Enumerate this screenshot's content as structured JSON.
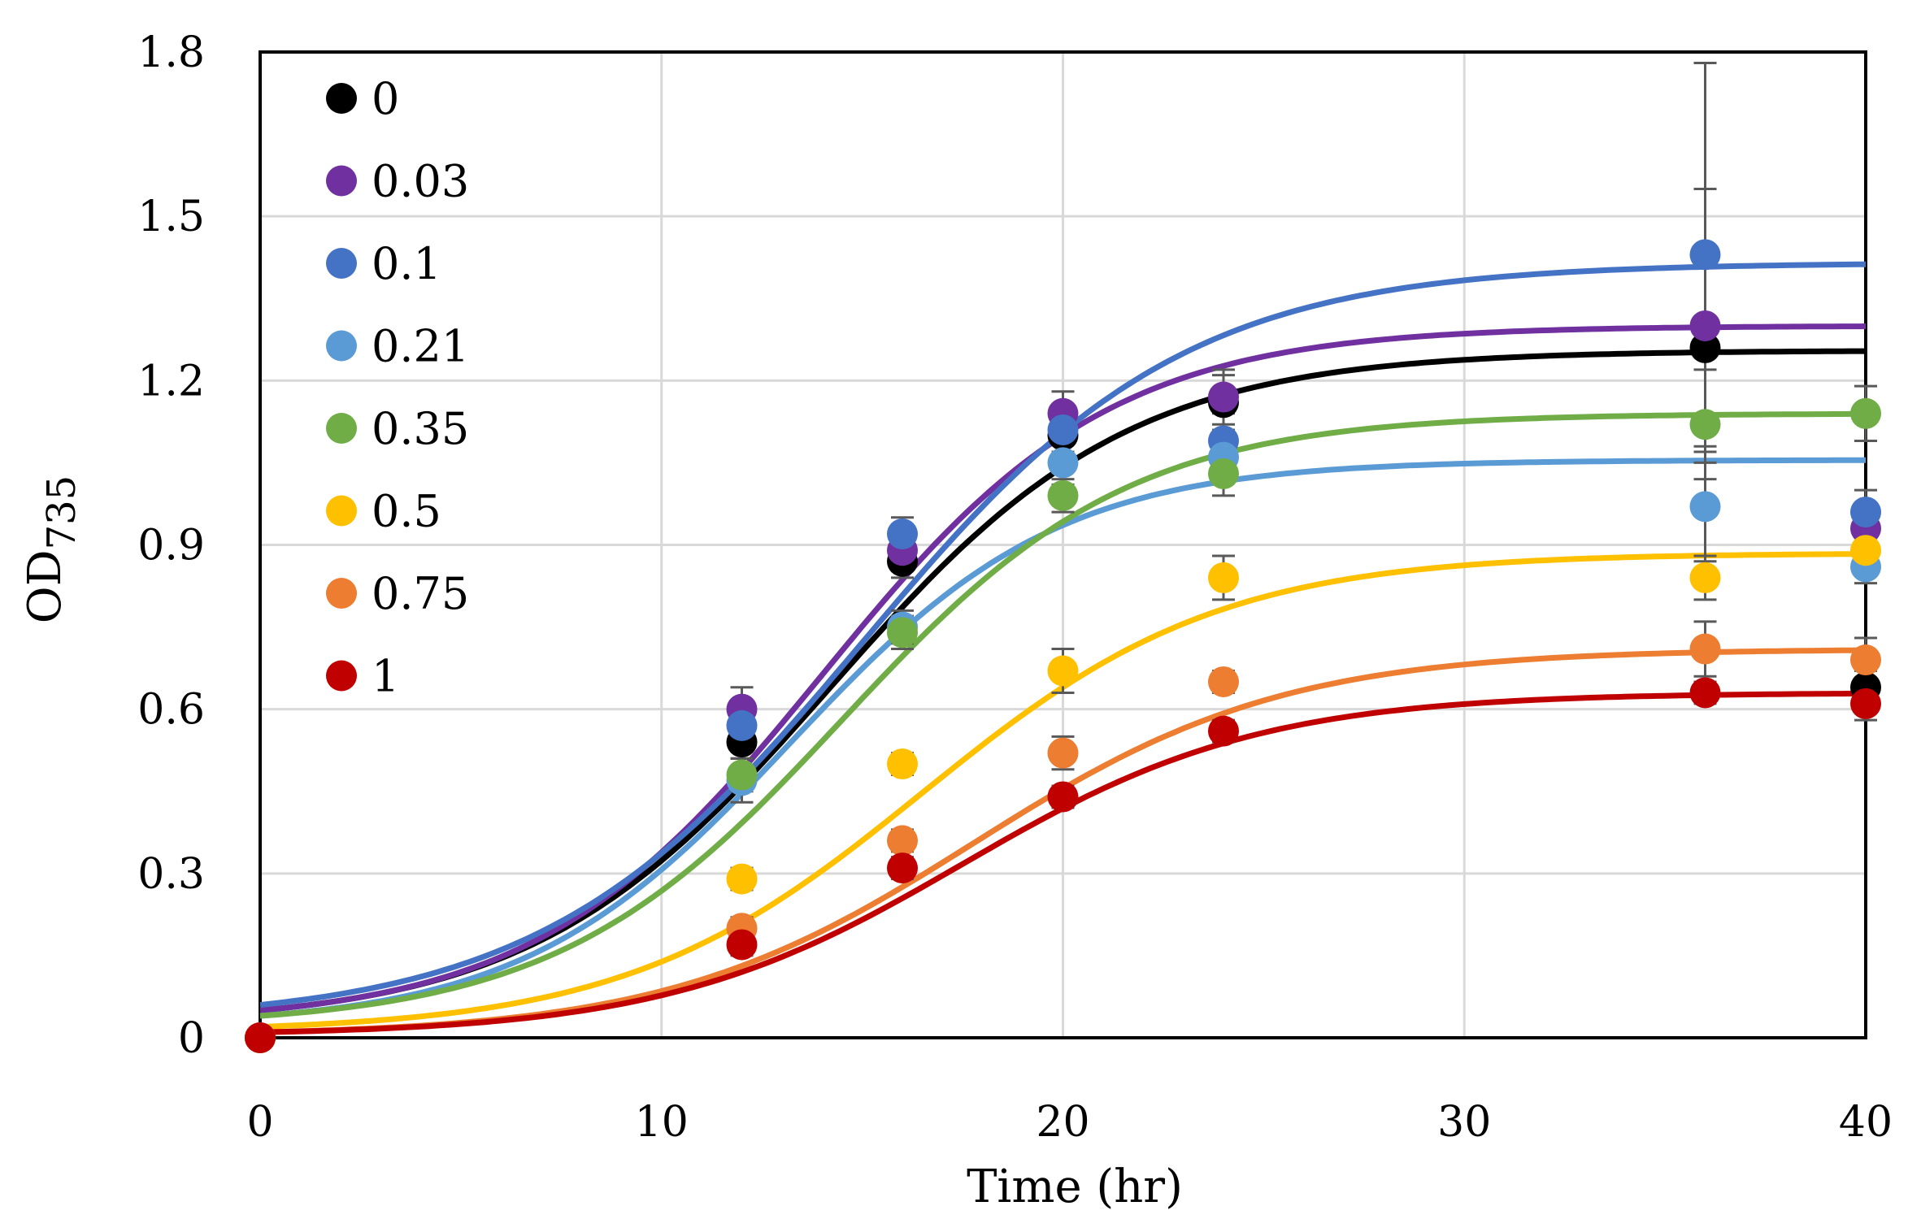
{
  "chart_data": {
    "type": "scatter",
    "title": "",
    "xlabel": "Time (hr)",
    "ylabel_main": "OD",
    "ylabel_sub": "735",
    "xlim": [
      0,
      40
    ],
    "ylim": [
      0,
      1.8
    ],
    "x_ticks": [
      0,
      10,
      20,
      30,
      40
    ],
    "x_tick_labels": [
      "0",
      "10",
      "20",
      "30",
      "40"
    ],
    "y_ticks": [
      0,
      0.3,
      0.6,
      0.9,
      1.2,
      1.5,
      1.8
    ],
    "y_tick_labels": [
      "0",
      "0.3",
      "0.6",
      "0.9",
      "1.2",
      "1.5",
      "1.8"
    ],
    "grid": true,
    "legend_position": "top-left",
    "x": [
      0,
      12,
      16,
      20,
      24,
      36,
      40
    ],
    "series": [
      {
        "name": "0",
        "color": "#000000",
        "values": [
          0.0,
          0.54,
          0.87,
          1.1,
          1.16,
          1.26,
          0.64
        ],
        "errors": [
          0,
          0.03,
          0.03,
          0.04,
          0.05,
          0.29,
          0.03
        ],
        "fit": {
          "max": 1.255,
          "k": 0.27,
          "t0": 14.2,
          "y0": 0.05
        }
      },
      {
        "name": "0.03",
        "color": "#7030a0",
        "values": [
          0.0,
          0.6,
          0.89,
          1.14,
          1.17,
          1.3,
          0.93
        ],
        "errors": [
          0,
          0.04,
          0.03,
          0.04,
          0.05,
          0.25,
          0.03
        ],
        "fit": {
          "max": 1.3,
          "k": 0.28,
          "t0": 14.0,
          "y0": 0.05
        }
      },
      {
        "name": "0.1",
        "color": "#4472c4",
        "values": [
          0.0,
          0.57,
          0.92,
          1.11,
          1.09,
          1.43,
          0.96
        ],
        "errors": [
          0,
          0.03,
          0.03,
          0.04,
          0.05,
          0.35,
          0.04
        ],
        "fit": {
          "max": 1.415,
          "k": 0.25,
          "t0": 15.0,
          "y0": 0.06
        }
      },
      {
        "name": "0.21",
        "color": "#5b9bd5",
        "values": [
          0.0,
          0.47,
          0.75,
          1.05,
          1.06,
          0.97,
          0.86
        ],
        "errors": [
          0,
          0.04,
          0.03,
          0.04,
          0.04,
          0.1,
          0.03
        ],
        "fit": {
          "max": 1.055,
          "k": 0.3,
          "t0": 13.2,
          "y0": 0.04
        }
      },
      {
        "name": "0.35",
        "color": "#70ad47",
        "values": [
          0.0,
          0.48,
          0.74,
          0.99,
          1.03,
          1.12,
          1.14
        ],
        "errors": [
          0,
          0.03,
          0.03,
          0.03,
          0.04,
          0.1,
          0.05
        ],
        "fit": {
          "max": 1.14,
          "k": 0.28,
          "t0": 14.5,
          "y0": 0.04
        }
      },
      {
        "name": "0.5",
        "color": "#ffc000",
        "values": [
          0.0,
          0.29,
          0.5,
          0.67,
          0.84,
          0.84,
          0.89
        ],
        "errors": [
          0,
          0.02,
          0.02,
          0.04,
          0.04,
          0.04,
          0.03
        ],
        "fit": {
          "max": 0.885,
          "k": 0.27,
          "t0": 16.5,
          "y0": 0.02
        }
      },
      {
        "name": "0.75",
        "color": "#ed7d31",
        "values": [
          0.0,
          0.2,
          0.36,
          0.52,
          0.65,
          0.71,
          0.69
        ],
        "errors": [
          0,
          0.02,
          0.02,
          0.03,
          0.02,
          0.05,
          0.04
        ],
        "fit": {
          "max": 0.71,
          "k": 0.26,
          "t0": 17.8,
          "y0": 0.01
        }
      },
      {
        "name": "1",
        "color": "#c00000",
        "values": [
          0.0,
          0.17,
          0.31,
          0.44,
          0.56,
          0.63,
          0.61
        ],
        "errors": [
          0,
          0.02,
          0.02,
          0.02,
          0.02,
          0.02,
          0.03
        ],
        "fit": {
          "max": 0.63,
          "k": 0.27,
          "t0": 17.5,
          "y0": 0.01
        }
      }
    ]
  }
}
